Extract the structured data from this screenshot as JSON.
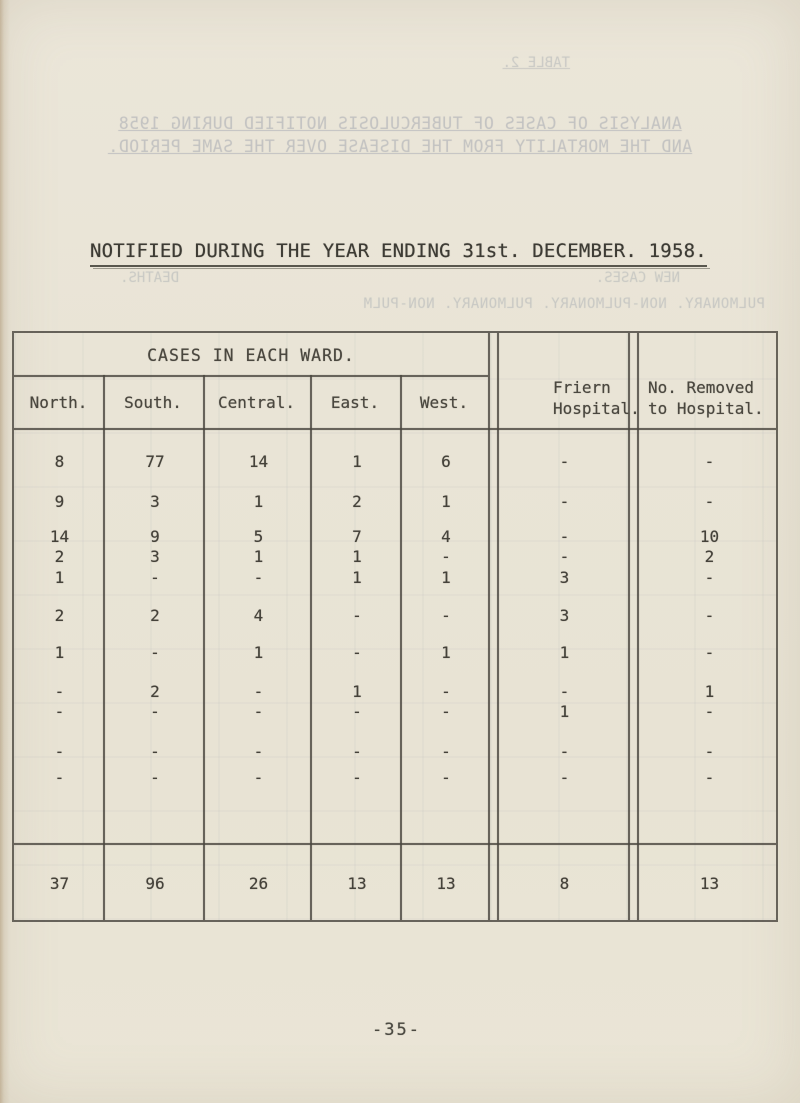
{
  "page": {
    "title": "NOTIFIED DURING THE YEAR ENDING 31st. DECEMBER. 1958.",
    "page_number": "-35-"
  },
  "colors": {
    "paper": "#e9e4d6",
    "ink": "#45423a",
    "table_line": "#4a473f",
    "ghost_ink": "#64708a"
  },
  "ghost_bleedthrough": {
    "table_label": "TABLE 2.",
    "title_line1": "ANALYSIS OF CASES OF TUBERCULOSIS NOTIFIED DURING 1958",
    "title_line2": "AND THE MORTALITY FROM THE DISEASE OVER THE SAME PERIOD.",
    "new_cases": "NEW CASES.",
    "deaths": "DEATHS.",
    "columns_line": "PULMONARY.  NON-PULMONARY.  PULMONARY.  NON-PULM"
  },
  "table": {
    "group_header": "CASES IN EACH WARD.",
    "ward_columns": [
      "North.",
      "South.",
      "Central.",
      "East.",
      "West."
    ],
    "friern_header_line1": "Friern",
    "friern_header_line2": "Hospital.",
    "removed_header_line1": "No. Removed",
    "removed_header_line2": "to Hospital.",
    "rows": [
      [
        "8",
        "77",
        "14",
        "1",
        "6",
        "-",
        "-"
      ],
      [
        "9",
        "3",
        "1",
        "2",
        "1",
        "-",
        "-"
      ],
      [
        "14",
        "9",
        "5",
        "7",
        "4",
        "-",
        "10"
      ],
      [
        "2",
        "3",
        "1",
        "1",
        "-",
        "-",
        "2"
      ],
      [
        "1",
        "-",
        "-",
        "1",
        "1",
        "3",
        "-"
      ],
      [
        "2",
        "2",
        "4",
        "-",
        "-",
        "3",
        "-"
      ],
      [
        "1",
        "-",
        "1",
        "-",
        "1",
        "1",
        "-"
      ],
      [
        "-",
        "2",
        "-",
        "1",
        "-",
        "-",
        "1"
      ],
      [
        "-",
        "-",
        "-",
        "-",
        "-",
        "1",
        "-"
      ],
      [
        "-",
        "-",
        "-",
        "-",
        "-",
        "-",
        "-"
      ],
      [
        "-",
        "-",
        "-",
        "-",
        "-",
        "-",
        "-"
      ]
    ],
    "totals": [
      "37",
      "96",
      "26",
      "13",
      "13",
      "8",
      "13"
    ]
  }
}
